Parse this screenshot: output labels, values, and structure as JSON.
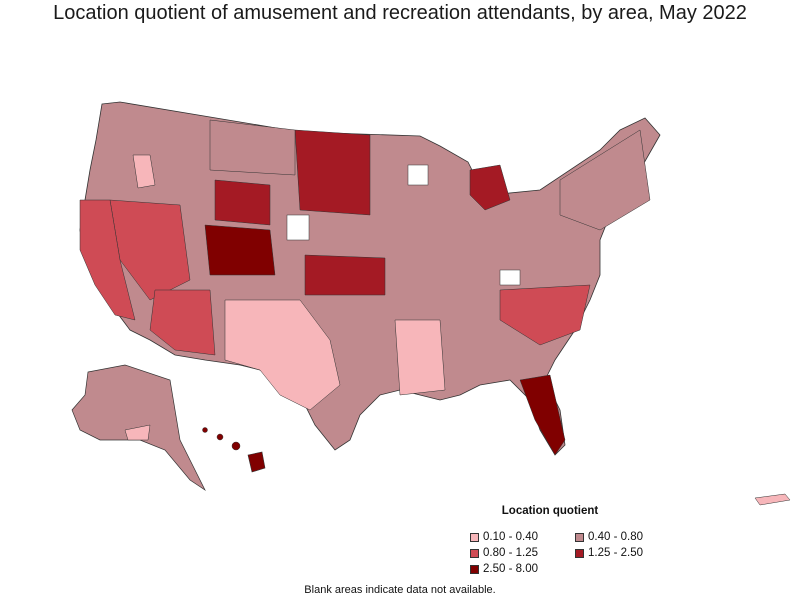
{
  "title": "Location quotient of amusement and recreation attendants, by area, May 2022",
  "legend": {
    "title": "Location quotient",
    "items": [
      {
        "label": "0.10 - 0.40",
        "color": "#f7b6ba"
      },
      {
        "label": "0.40 - 0.80",
        "color": "#c08a8e"
      },
      {
        "label": "0.80 - 1.25",
        "color": "#cf4b55"
      },
      {
        "label": "1.25 - 2.50",
        "color": "#a41a24"
      },
      {
        "label": "2.50 - 8.00",
        "color": "#800000"
      }
    ]
  },
  "note": "Blank areas indicate data not available."
}
